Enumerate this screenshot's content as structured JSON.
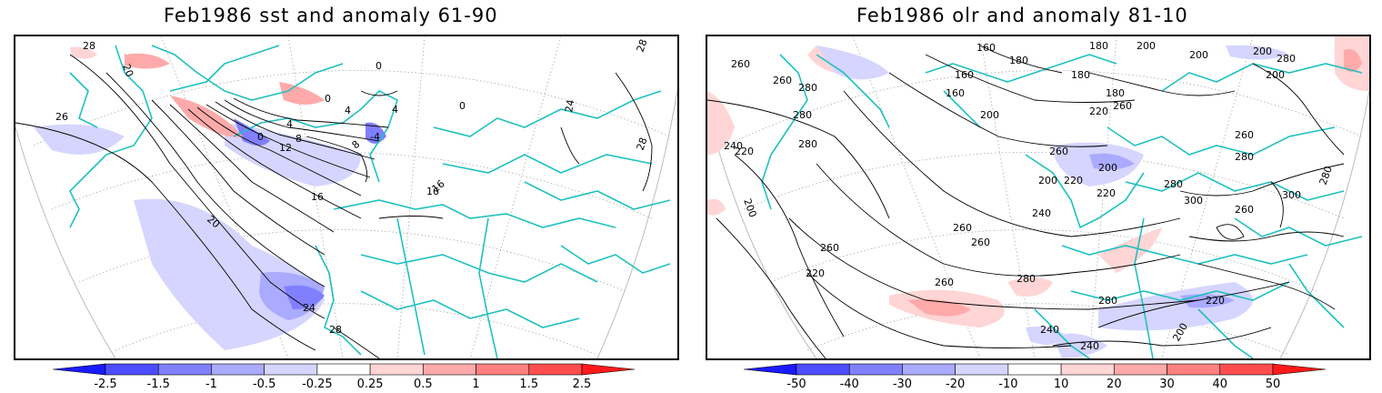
{
  "panels": [
    {
      "title": "Feb1986 sst and anomaly 61-90",
      "colorbar": {
        "labels": [
          "-2.5",
          "-1.5",
          "-1",
          "-0.5",
          "-0.25",
          "0.25",
          "0.5",
          "1",
          "1.5",
          "2.5"
        ],
        "colors": [
          "#1a1aff",
          "#4d4dff",
          "#8080ff",
          "#aaaaff",
          "#d5d5ff",
          "#ffffff",
          "#ffd5d5",
          "#ffaaaa",
          "#ff8080",
          "#ff4d4d",
          "#ff1a1a"
        ]
      },
      "contour_labels": [
        "28",
        "20",
        "26",
        "0",
        "4",
        "8",
        "12",
        "16",
        "20",
        "24",
        "28",
        "0",
        "4",
        "8",
        "4",
        "0",
        "0",
        "-4",
        "16",
        "16",
        "24",
        "28",
        "28"
      ]
    },
    {
      "title": "Feb1986 olr and anomaly 81-10",
      "colorbar": {
        "labels": [
          "-50",
          "-40",
          "-30",
          "-20",
          "-10",
          "10",
          "20",
          "30",
          "40",
          "50"
        ],
        "colors": [
          "#1a1aff",
          "#4d4dff",
          "#8080ff",
          "#aaaaff",
          "#d5d5ff",
          "#ffffff",
          "#ffd5d5",
          "#ffaaaa",
          "#ff8080",
          "#ff4d4d",
          "#ff1a1a"
        ]
      },
      "contour_labels": [
        "260",
        "260",
        "280",
        "280",
        "280",
        "240",
        "220",
        "200",
        "160",
        "160",
        "160",
        "180",
        "180",
        "200",
        "180",
        "200",
        "220",
        "200",
        "180",
        "200",
        "200",
        "260",
        "260",
        "280",
        "200",
        "220",
        "220",
        "200",
        "240",
        "260",
        "260",
        "280",
        "300",
        "260",
        "300",
        "280",
        "220",
        "260",
        "280",
        "260",
        "280",
        "220",
        "240",
        "240",
        "200",
        "280",
        "260"
      ]
    }
  ]
}
